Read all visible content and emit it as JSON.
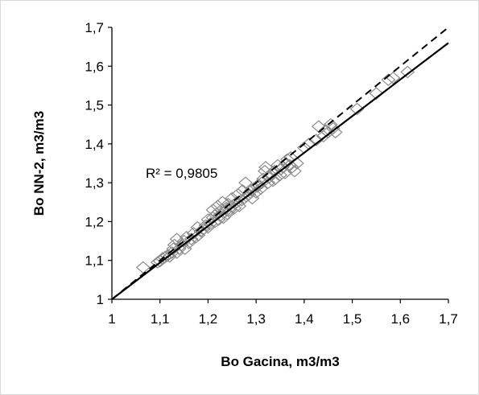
{
  "chart_data": {
    "type": "scatter",
    "title": "",
    "xlabel": "Bo Gacina, m3/m3",
    "ylabel": "Bo NN-2, m3/m3",
    "xlim": [
      1,
      1.7
    ],
    "ylim": [
      1,
      1.7
    ],
    "xticks": [
      "1",
      "1,1",
      "1,2",
      "1,3",
      "1,4",
      "1,5",
      "1,6",
      "1,7"
    ],
    "yticks": [
      "1",
      "1,1",
      "1,2",
      "1,3",
      "1,4",
      "1,5",
      "1,6",
      "1,7"
    ],
    "tick_values": [
      1,
      1.1,
      1.2,
      1.3,
      1.4,
      1.5,
      1.6,
      1.7
    ],
    "grid": false,
    "legend": "none",
    "marker": "diamond-open",
    "marker_color": "#8c8c8c",
    "annotation": "R² = 0,9805",
    "lines": [
      {
        "style": "solid",
        "color": "#000000",
        "x": [
          1.0,
          1.7
        ],
        "y": [
          1.0,
          1.66
        ]
      },
      {
        "style": "dashed",
        "color": "#000000",
        "x": [
          1.0,
          1.7
        ],
        "y": [
          1.0,
          1.7
        ]
      }
    ],
    "points": [
      [
        1.065,
        1.082
      ],
      [
        1.095,
        1.095
      ],
      [
        1.1,
        1.098
      ],
      [
        1.105,
        1.105
      ],
      [
        1.11,
        1.108
      ],
      [
        1.115,
        1.112
      ],
      [
        1.12,
        1.11
      ],
      [
        1.125,
        1.12
      ],
      [
        1.128,
        1.13
      ],
      [
        1.13,
        1.14
      ],
      [
        1.135,
        1.12
      ],
      [
        1.135,
        1.155
      ],
      [
        1.14,
        1.13
      ],
      [
        1.145,
        1.14
      ],
      [
        1.15,
        1.15
      ],
      [
        1.152,
        1.13
      ],
      [
        1.155,
        1.16
      ],
      [
        1.16,
        1.145
      ],
      [
        1.165,
        1.155
      ],
      [
        1.17,
        1.17
      ],
      [
        1.175,
        1.16
      ],
      [
        1.178,
        1.185
      ],
      [
        1.18,
        1.165
      ],
      [
        1.185,
        1.175
      ],
      [
        1.19,
        1.18
      ],
      [
        1.195,
        1.19
      ],
      [
        1.2,
        1.185
      ],
      [
        1.2,
        1.205
      ],
      [
        1.205,
        1.195
      ],
      [
        1.21,
        1.21
      ],
      [
        1.21,
        1.23
      ],
      [
        1.215,
        1.2
      ],
      [
        1.218,
        1.22
      ],
      [
        1.22,
        1.24
      ],
      [
        1.222,
        1.205
      ],
      [
        1.225,
        1.215
      ],
      [
        1.228,
        1.23
      ],
      [
        1.23,
        1.25
      ],
      [
        1.232,
        1.21
      ],
      [
        1.235,
        1.225
      ],
      [
        1.238,
        1.235
      ],
      [
        1.24,
        1.22
      ],
      [
        1.242,
        1.245
      ],
      [
        1.245,
        1.23
      ],
      [
        1.25,
        1.24
      ],
      [
        1.25,
        1.26
      ],
      [
        1.255,
        1.235
      ],
      [
        1.26,
        1.25
      ],
      [
        1.262,
        1.27
      ],
      [
        1.265,
        1.24
      ],
      [
        1.27,
        1.255
      ],
      [
        1.272,
        1.28
      ],
      [
        1.275,
        1.26
      ],
      [
        1.278,
        1.3
      ],
      [
        1.28,
        1.265
      ],
      [
        1.285,
        1.27
      ],
      [
        1.29,
        1.28
      ],
      [
        1.292,
        1.26
      ],
      [
        1.295,
        1.285
      ],
      [
        1.3,
        1.275
      ],
      [
        1.302,
        1.29
      ],
      [
        1.305,
        1.295
      ],
      [
        1.31,
        1.285
      ],
      [
        1.312,
        1.3
      ],
      [
        1.315,
        1.31
      ],
      [
        1.318,
        1.33
      ],
      [
        1.32,
        1.34
      ],
      [
        1.325,
        1.3
      ],
      [
        1.328,
        1.315
      ],
      [
        1.33,
        1.32
      ],
      [
        1.335,
        1.305
      ],
      [
        1.338,
        1.33
      ],
      [
        1.34,
        1.31
      ],
      [
        1.345,
        1.345
      ],
      [
        1.35,
        1.32
      ],
      [
        1.352,
        1.335
      ],
      [
        1.355,
        1.34
      ],
      [
        1.36,
        1.325
      ],
      [
        1.362,
        1.35
      ],
      [
        1.365,
        1.36
      ],
      [
        1.37,
        1.345
      ],
      [
        1.372,
        1.365
      ],
      [
        1.375,
        1.34
      ],
      [
        1.38,
        1.33
      ],
      [
        1.385,
        1.35
      ],
      [
        1.4,
        1.39
      ],
      [
        1.41,
        1.4
      ],
      [
        1.425,
        1.41
      ],
      [
        1.43,
        1.445
      ],
      [
        1.44,
        1.42
      ],
      [
        1.445,
        1.435
      ],
      [
        1.45,
        1.43
      ],
      [
        1.455,
        1.45
      ],
      [
        1.46,
        1.44
      ],
      [
        1.465,
        1.43
      ],
      [
        1.51,
        1.49
      ],
      [
        1.55,
        1.53
      ],
      [
        1.575,
        1.565
      ],
      [
        1.585,
        1.57
      ],
      [
        1.615,
        1.585
      ]
    ]
  }
}
